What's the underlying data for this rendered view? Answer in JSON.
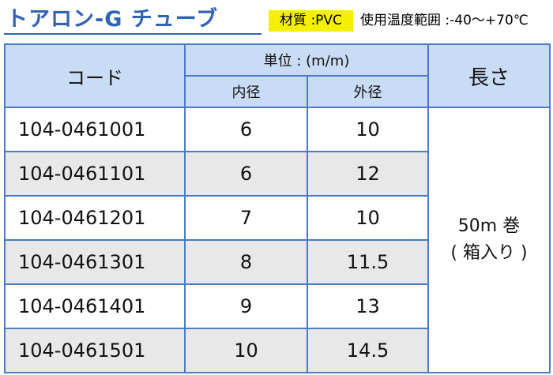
{
  "header": {
    "title": "トアロン-G チューブ",
    "material": "材質 :PVC",
    "temperature": "使用温度範囲 :-40〜+70℃"
  },
  "table": {
    "columns": {
      "code": "コード",
      "unit": "単位 : (m/m)",
      "inner": "内径",
      "outer": "外径",
      "length": "長さ"
    },
    "rows": [
      [
        "104-0461001",
        "6",
        "10"
      ],
      [
        "104-0461101",
        "6",
        "12"
      ],
      [
        "104-0461201",
        "7",
        "10"
      ],
      [
        "104-0461301",
        "8",
        "11.5"
      ],
      [
        "104-0461401",
        "9",
        "13"
      ],
      [
        "104-0461501",
        "10",
        "14.5"
      ]
    ],
    "length": [
      "50m 巻",
      "( 箱入り )"
    ]
  }
}
